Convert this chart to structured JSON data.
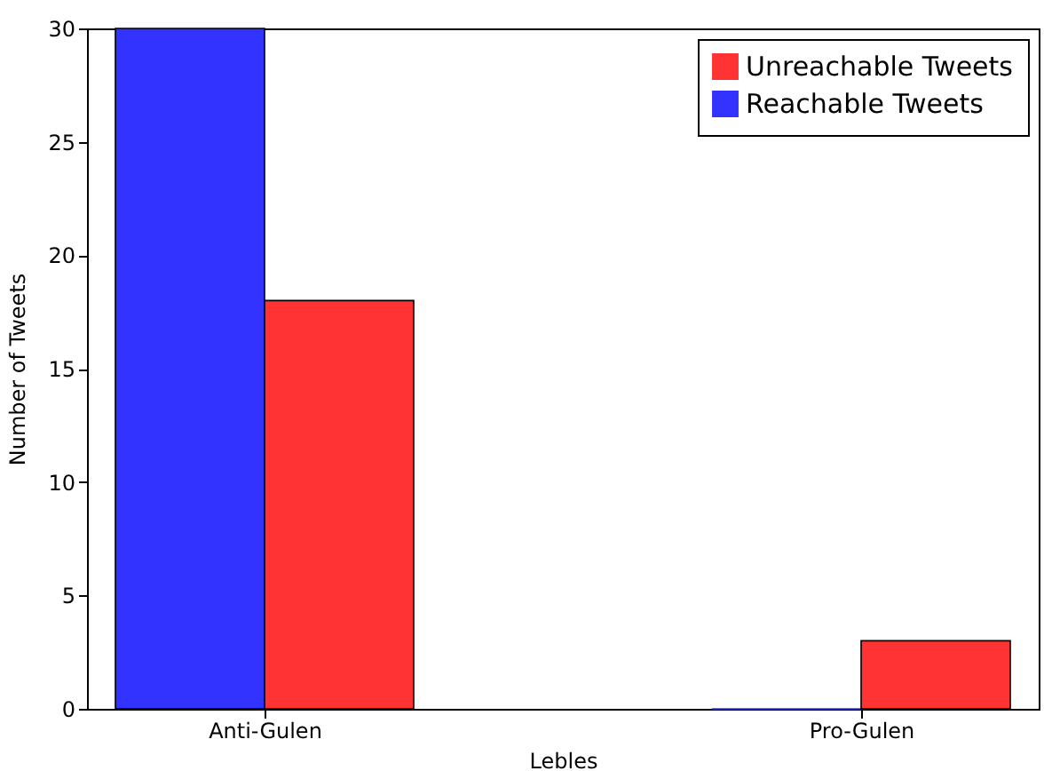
{
  "chart_data": {
    "type": "bar",
    "categories": [
      "Anti-Gulen",
      "Pro-Gulen"
    ],
    "series": [
      {
        "name": "Reachable Tweets",
        "color": "#3333ff",
        "values": [
          30,
          0
        ]
      },
      {
        "name": "Unreachable Tweets",
        "color": "#ff3333",
        "values": [
          18,
          3
        ]
      }
    ],
    "xlabel": "Lebles",
    "ylabel": "Number of Tweets",
    "ylim": [
      0,
      30
    ],
    "yticks": [
      0,
      5,
      10,
      15,
      20,
      25,
      30
    ],
    "legend": "top right"
  }
}
